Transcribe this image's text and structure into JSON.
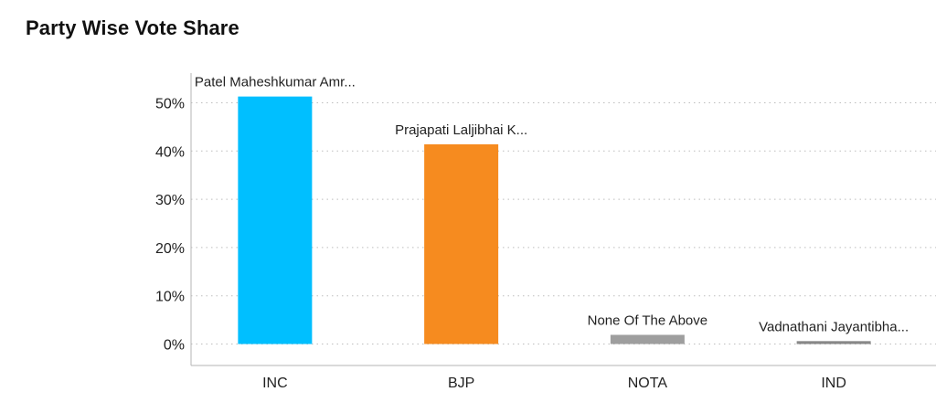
{
  "page": {
    "title": "Party Wise Vote Share"
  },
  "chart_data": {
    "type": "bar",
    "title": "Party Wise Vote Share",
    "xlabel": "",
    "ylabel": "",
    "ylim": [
      0,
      55
    ],
    "yticks": [
      0,
      10,
      20,
      30,
      40,
      50
    ],
    "ytick_labels": [
      "0%",
      "10%",
      "20%",
      "30%",
      "40%",
      "50%"
    ],
    "grid": true,
    "categories": [
      "INC",
      "BJP",
      "NOTA",
      "IND"
    ],
    "values": [
      51.3,
      41.4,
      1.9,
      0.6
    ],
    "bar_labels": [
      "Patel Maheshkumar Amr...",
      "Prajapati Laljibhai K...",
      "None Of The Above",
      "Vadnathani Jayantibha..."
    ],
    "colors": [
      "#00BFFF",
      "#F68B1F",
      "#9E9E9E",
      "#888888"
    ]
  }
}
